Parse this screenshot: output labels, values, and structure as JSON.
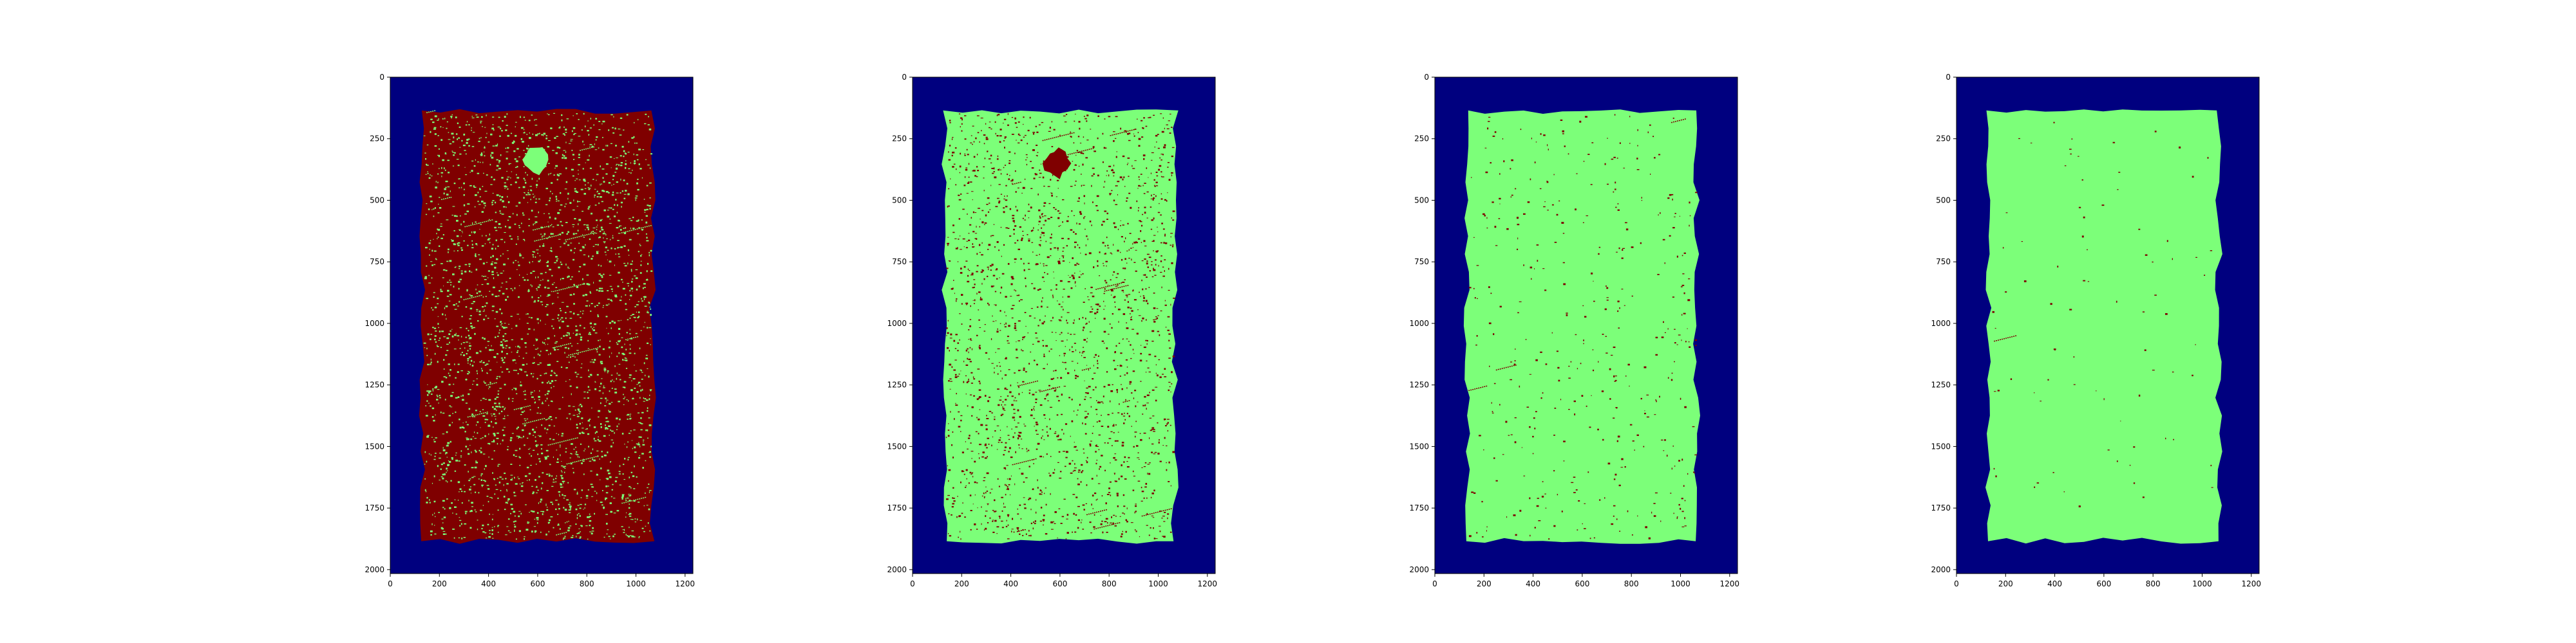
{
  "chart_data": [
    {
      "type": "heatmap",
      "panel": 1,
      "xlim": [
        0,
        1232
      ],
      "ylim": [
        2016,
        0
      ],
      "x_ticks": [
        0,
        200,
        400,
        600,
        800,
        1000,
        1200
      ],
      "y_ticks": [
        0,
        250,
        500,
        750,
        1000,
        1250,
        1500,
        1750,
        2000
      ],
      "x_tick_labels": [
        "0",
        "200",
        "400",
        "600",
        "800",
        "1000",
        "1200"
      ],
      "y_tick_labels": [
        "0",
        "250",
        "500",
        "750",
        "1000",
        "1250",
        "1500",
        "1750",
        "2000"
      ],
      "colormap": "jet",
      "colors": {
        "background": "#00007f",
        "sample": "#7f0000",
        "detected": "#7cff79"
      },
      "sample_region": {
        "x": [
          125,
          1070
        ],
        "y": [
          135,
          1885
        ]
      },
      "detected_fraction": 0.07,
      "notable_features": [
        {
          "x": [
            530,
            660
          ],
          "y": [
            270,
            400
          ],
          "class": "detected"
        }
      ]
    },
    {
      "type": "heatmap",
      "panel": 2,
      "xlim": [
        0,
        1232
      ],
      "ylim": [
        2016,
        0
      ],
      "x_ticks": [
        0,
        200,
        400,
        600,
        800,
        1000,
        1200
      ],
      "y_ticks": [
        0,
        250,
        500,
        750,
        1000,
        1250,
        1500,
        1750,
        2000
      ],
      "x_tick_labels": [
        "0",
        "200",
        "400",
        "600",
        "800",
        "1000",
        "1200"
      ],
      "y_tick_labels": [
        "0",
        "250",
        "500",
        "750",
        "1000",
        "1250",
        "1500",
        "1750",
        "2000"
      ],
      "colormap": "jet",
      "colors": {
        "background": "#00007f",
        "sample": "#7cff79",
        "detected": "#7f0000"
      },
      "sample_region": {
        "x": [
          125,
          1070
        ],
        "y": [
          135,
          1885
        ]
      },
      "detected_fraction": 0.05,
      "notable_features": [
        {
          "x": [
            520,
            650
          ],
          "y": [
            280,
            420
          ],
          "class": "detected"
        }
      ]
    },
    {
      "type": "heatmap",
      "panel": 3,
      "xlim": [
        0,
        1232
      ],
      "ylim": [
        2016,
        0
      ],
      "x_ticks": [
        0,
        200,
        400,
        600,
        800,
        1000,
        1200
      ],
      "y_ticks": [
        0,
        250,
        500,
        750,
        1000,
        1250,
        1500,
        1750,
        2000
      ],
      "x_tick_labels": [
        "0",
        "200",
        "400",
        "600",
        "800",
        "1000",
        "1200"
      ],
      "y_tick_labels": [
        "0",
        "250",
        "500",
        "750",
        "1000",
        "1250",
        "1500",
        "1750",
        "2000"
      ],
      "colormap": "jet",
      "colors": {
        "background": "#00007f",
        "sample": "#7cff79",
        "detected": "#7f0000"
      },
      "sample_region": {
        "x": [
          125,
          1070
        ],
        "y": [
          135,
          1885
        ]
      },
      "detected_fraction": 0.01
    },
    {
      "type": "heatmap",
      "panel": 4,
      "xlim": [
        0,
        1232
      ],
      "ylim": [
        2016,
        0
      ],
      "x_ticks": [
        0,
        200,
        400,
        600,
        800,
        1000,
        1200
      ],
      "y_ticks": [
        0,
        250,
        500,
        750,
        1000,
        1250,
        1500,
        1750,
        2000
      ],
      "x_tick_labels": [
        "0",
        "200",
        "400",
        "600",
        "800",
        "1000",
        "1200"
      ],
      "y_tick_labels": [
        "0",
        "250",
        "500",
        "750",
        "1000",
        "1250",
        "1500",
        "1750",
        "2000"
      ],
      "colormap": "jet",
      "colors": {
        "background": "#00007f",
        "sample": "#7cff79",
        "detected": "#7f0000"
      },
      "sample_region": {
        "x": [
          125,
          1070
        ],
        "y": [
          135,
          1885
        ]
      },
      "detected_fraction": 0.002
    }
  ]
}
